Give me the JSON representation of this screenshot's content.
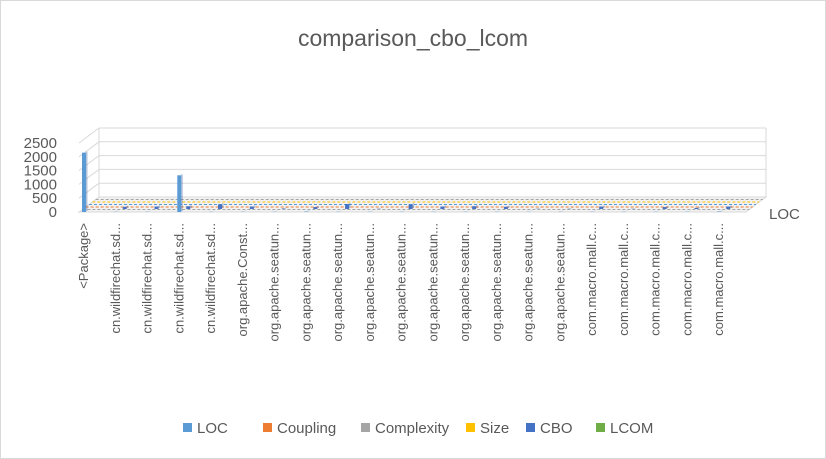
{
  "chart_data": {
    "type": "bar",
    "title": "comparison_cbo_lcom",
    "yticks": [
      "0",
      "500",
      "1000",
      "1500",
      "2000",
      "2500"
    ],
    "ylim": [
      0,
      2500
    ],
    "grid": true,
    "legend_position": "bottom",
    "depth_axis_label": "LOC",
    "categories": [
      "<Package>",
      "cn.wildfirechat.sd...",
      "cn.wildfirechat.sd...",
      "cn.wildfirechat.sd...",
      "cn.wildfirechat.sd...",
      "org.apache.Const...",
      "org.apache.seatun...",
      "org.apache.seatun...",
      "org.apache.seatun...",
      "org.apache.seatun...",
      "org.apache.seatun...",
      "org.apache.seatun...",
      "org.apache.seatun...",
      "org.apache.seatun...",
      "org.apache.seatun...",
      "org.apache.seatun...",
      "com.macro.mall.c...",
      "com.macro.mall.c...",
      "com.macro.mall.c...",
      "com.macro.mall.c...",
      "com.macro.mall.c..."
    ],
    "series": [
      {
        "name": "LOC",
        "color": "#5b9bd5",
        "values": [
          2150,
          10,
          10,
          1330,
          10,
          10,
          10,
          20,
          10,
          10,
          10,
          10,
          10,
          10,
          10,
          10,
          10,
          10,
          10,
          10,
          20
        ]
      },
      {
        "name": "Coupling",
        "color": "#ed7d31",
        "values": [
          0,
          0,
          0,
          0,
          0,
          0,
          0,
          0,
          0,
          0,
          0,
          0,
          0,
          0,
          0,
          0,
          0,
          0,
          0,
          0,
          0
        ]
      },
      {
        "name": "Complexity",
        "color": "#a5a5a5",
        "values": [
          0,
          0,
          0,
          0,
          0,
          0,
          0,
          0,
          0,
          0,
          0,
          0,
          0,
          0,
          0,
          0,
          0,
          0,
          0,
          0,
          0
        ]
      },
      {
        "name": "Size",
        "color": "#ffc000",
        "values": [
          0,
          0,
          0,
          0,
          0,
          0,
          0,
          0,
          0,
          0,
          0,
          0,
          0,
          0,
          0,
          0,
          0,
          0,
          0,
          0,
          0
        ]
      },
      {
        "name": "CBO",
        "color": "#4472c4",
        "values": [
          0,
          80,
          90,
          100,
          170,
          90,
          20,
          70,
          180,
          10,
          170,
          90,
          100,
          80,
          10,
          10,
          90,
          10,
          70,
          40,
          90
        ]
      },
      {
        "name": "LCOM",
        "color": "#70ad47",
        "values": [
          0,
          0,
          0,
          0,
          0,
          0,
          0,
          0,
          0,
          0,
          0,
          0,
          0,
          0,
          0,
          0,
          0,
          0,
          0,
          0,
          0
        ]
      }
    ]
  }
}
